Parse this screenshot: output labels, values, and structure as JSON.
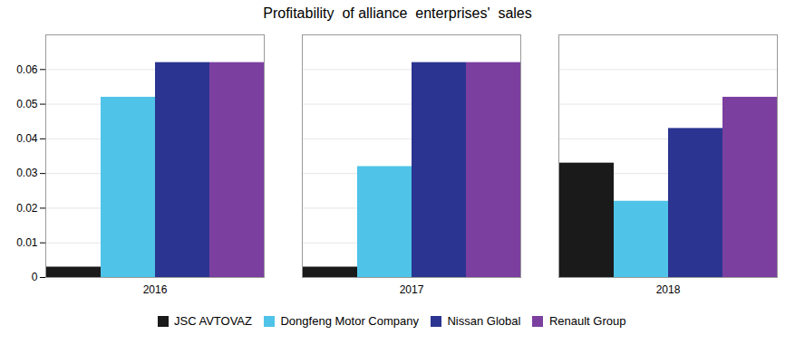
{
  "chart_data": {
    "type": "bar",
    "title": "Profitability  of alliance  enterprises'  sales",
    "categories": [
      "2016",
      "2017",
      "2018"
    ],
    "series": [
      {
        "name": "JSC AVTOVAZ",
        "color": "#1a1a1a",
        "values": [
          0.003,
          0.003,
          0.033
        ]
      },
      {
        "name": "Dongfeng Motor Company",
        "color": "#4fc3e8",
        "values": [
          0.052,
          0.032,
          0.022
        ]
      },
      {
        "name": "Nissan Global",
        "color": "#2b3490",
        "values": [
          0.062,
          0.062,
          0.043
        ]
      },
      {
        "name": "Renault Group",
        "color": "#7b3fa0",
        "values": [
          0.062,
          0.062,
          0.052
        ]
      }
    ],
    "ylim": [
      0,
      0.07
    ],
    "yticks": [
      0,
      0.01,
      0.02,
      0.03,
      0.04,
      0.05,
      0.06
    ],
    "grid": true,
    "legend": "bottom"
  }
}
